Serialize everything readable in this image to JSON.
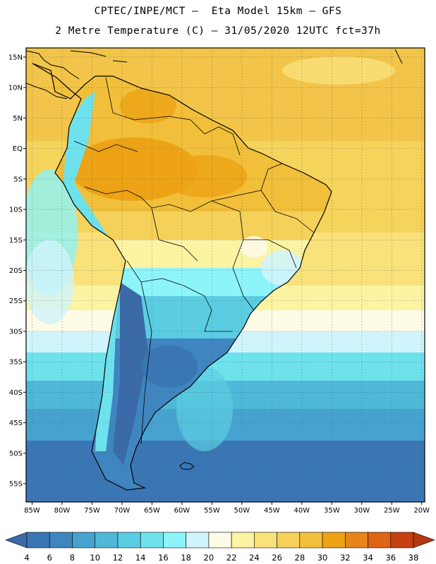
{
  "header": {
    "title_line1": "CPTEC/INPE/MCT –  Eta Model 15km – GFS",
    "title_line2": "2 Metre Temperature (C) – 31/05/2020 12UTC fct=37h"
  },
  "map": {
    "region": "South America",
    "lat_labels": [
      "15N",
      "10N",
      "5N",
      "EQ",
      "5S",
      "10S",
      "15S",
      "20S",
      "25S",
      "30S",
      "35S",
      "40S",
      "45S",
      "50S",
      "55S"
    ],
    "lon_labels": [
      "85W",
      "80W",
      "75W",
      "70W",
      "65W",
      "60W",
      "55W",
      "50W",
      "45W",
      "40W",
      "35W",
      "30W",
      "25W",
      "20W"
    ],
    "lat_values": [
      15,
      10,
      5,
      0,
      -5,
      -10,
      -15,
      -20,
      -25,
      -30,
      -35,
      -40,
      -45,
      -50,
      -55
    ],
    "lon_values": [
      -85,
      -80,
      -75,
      -70,
      -65,
      -60,
      -55,
      -50,
      -45,
      -40,
      -35,
      -30,
      -25,
      -20
    ],
    "lat_range": [
      -58,
      16.5
    ],
    "lon_range": [
      -86,
      -19.5
    ],
    "gridlines": "dotted"
  },
  "colorbar": {
    "labels": [
      "4",
      "6",
      "8",
      "10",
      "12",
      "14",
      "16",
      "18",
      "20",
      "22",
      "24",
      "26",
      "28",
      "30",
      "32",
      "34",
      "36",
      "38"
    ],
    "colors": [
      "#3a6aa8",
      "#3b76b4",
      "#3f86c0",
      "#46a3cf",
      "#4fb8d8",
      "#5bcde2",
      "#6ee2ec",
      "#8df4fa",
      "#d0f4fb",
      "#fefbe6",
      "#fcf3a3",
      "#f9e27a",
      "#f5d15a",
      "#f1bf3a",
      "#eda315",
      "#e7841b",
      "#df6413",
      "#c64012",
      "#b33a10"
    ],
    "units": "C"
  }
}
